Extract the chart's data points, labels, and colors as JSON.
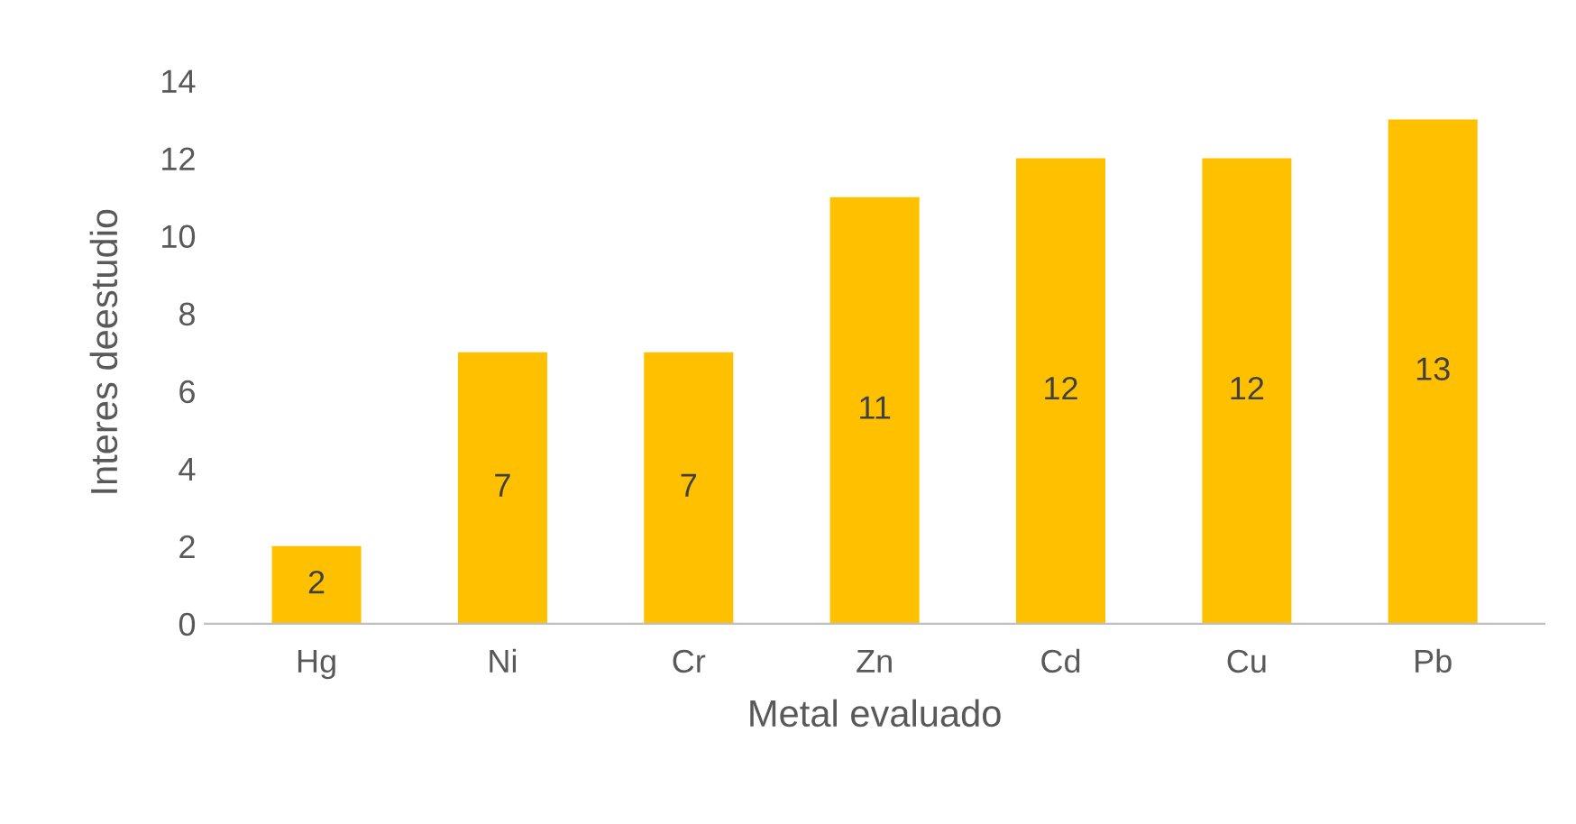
{
  "chart_data": {
    "type": "bar",
    "xlabel": "Metal evaluado",
    "ylabel": "Interes deestudio",
    "categories": [
      "Hg",
      "Ni",
      "Cr",
      "Zn",
      "Cd",
      "Cu",
      "Pb"
    ],
    "values": [
      2,
      7,
      7,
      11,
      12,
      12,
      13
    ],
    "color": "#ffc000",
    "ylim": [
      0,
      14
    ],
    "yticks": [
      0,
      2,
      4,
      6,
      8,
      10,
      12,
      14
    ],
    "grid": false,
    "data_labels": true
  }
}
